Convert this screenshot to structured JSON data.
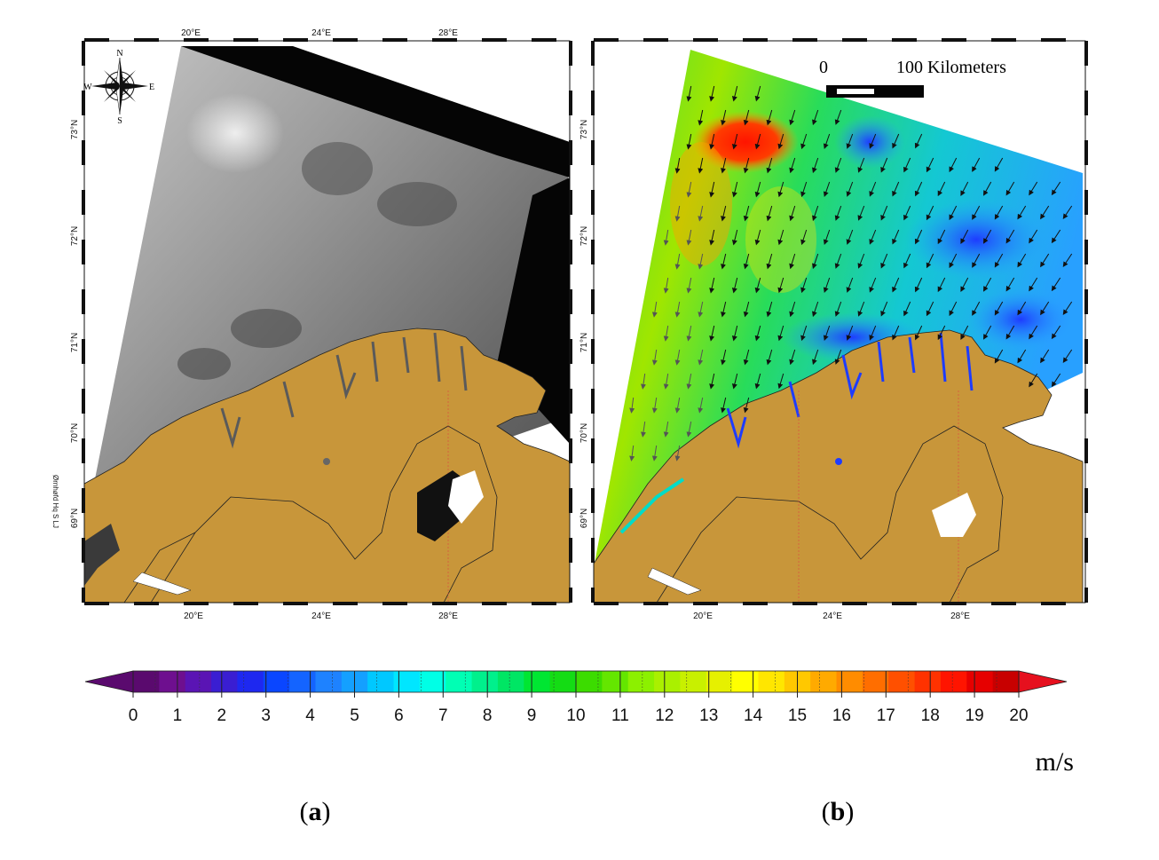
{
  "figure": {
    "panels": [
      {
        "caption_letter": "a",
        "top_lon_labels": [
          "20°E",
          "24°E",
          "28°E"
        ],
        "bottom_lon_labels": [
          "20°E",
          "24°E",
          "28°E"
        ],
        "lat_labels": [
          "73°N",
          "72°N",
          "71°N",
          "70°N",
          "69°N"
        ],
        "compass": {
          "n": "N",
          "s": "S",
          "e": "E",
          "w": "W"
        },
        "credit": "Ørnhøfd Hq S LJ"
      },
      {
        "caption_letter": "b",
        "top_lon_labels": [],
        "bottom_lon_labels": [
          "20°E",
          "24°E",
          "28°E"
        ],
        "lat_labels": [
          "73°N",
          "72°N",
          "71°N",
          "70°N",
          "69°N"
        ],
        "scale_bar": {
          "zero": "0",
          "label": "100 Kilometers"
        }
      }
    ],
    "colorbar": {
      "ticks": [
        "0",
        "1",
        "2",
        "3",
        "4",
        "5",
        "6",
        "7",
        "8",
        "9",
        "10",
        "11",
        "12",
        "13",
        "14",
        "15",
        "16",
        "17",
        "18",
        "19",
        "20"
      ],
      "unit": "m/s",
      "colors": [
        "#5a0a6e",
        "#6e0f8f",
        "#5a14b4",
        "#3a1ed2",
        "#1e28f0",
        "#0a46ff",
        "#1464ff",
        "#1e82ff",
        "#14a0ff",
        "#00c8ff",
        "#00e6ff",
        "#00ffe6",
        "#00ffb4",
        "#00f08c",
        "#00e664",
        "#00e632",
        "#14dc14",
        "#3cdc00",
        "#64e600",
        "#8cf000",
        "#aaf000",
        "#c8f000",
        "#e6f000",
        "#ffff00",
        "#ffe600",
        "#ffc800",
        "#ffaa00",
        "#ff8c00",
        "#ff6e00",
        "#ff5000",
        "#ff3200",
        "#ff1400",
        "#e60000",
        "#c80000"
      ]
    }
  }
}
